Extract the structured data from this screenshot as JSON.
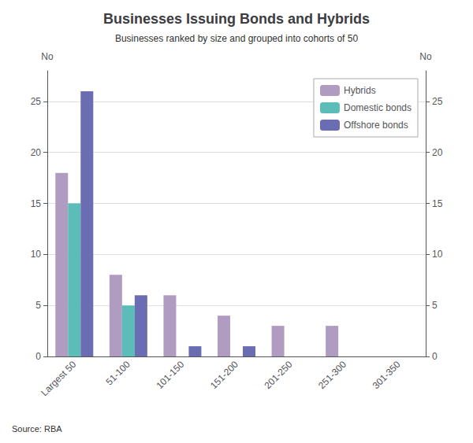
{
  "chart_data": {
    "type": "bar",
    "title": "Businesses Issuing Bonds and Hybrids",
    "subtitle": "Businesses ranked by size and grouped into cohorts of 50",
    "categories": [
      "Largest 50",
      "51-100",
      "101-150",
      "151-200",
      "201-250",
      "251-300",
      "301-350"
    ],
    "series": [
      {
        "name": "Hybrids",
        "color": "#b09cc0",
        "values": [
          18,
          8,
          6,
          4,
          3,
          3,
          0
        ]
      },
      {
        "name": "Domestic bonds",
        "color": "#5bbcb8",
        "values": [
          15,
          5,
          0,
          0,
          0,
          0,
          0
        ]
      },
      {
        "name": "Offshore bonds",
        "color": "#6b6db3",
        "values": [
          26,
          6,
          1,
          1,
          0,
          0,
          0
        ]
      }
    ],
    "ylabel": "No",
    "y2label": "No",
    "ylim": [
      0,
      28
    ],
    "yticks": [
      0,
      5,
      10,
      15,
      20,
      25
    ],
    "y2lim": [
      0,
      28
    ],
    "y2ticks": [
      0,
      5,
      10,
      15,
      20,
      25
    ],
    "grid": true,
    "legend": "upper right",
    "source": "Source: RBA"
  }
}
